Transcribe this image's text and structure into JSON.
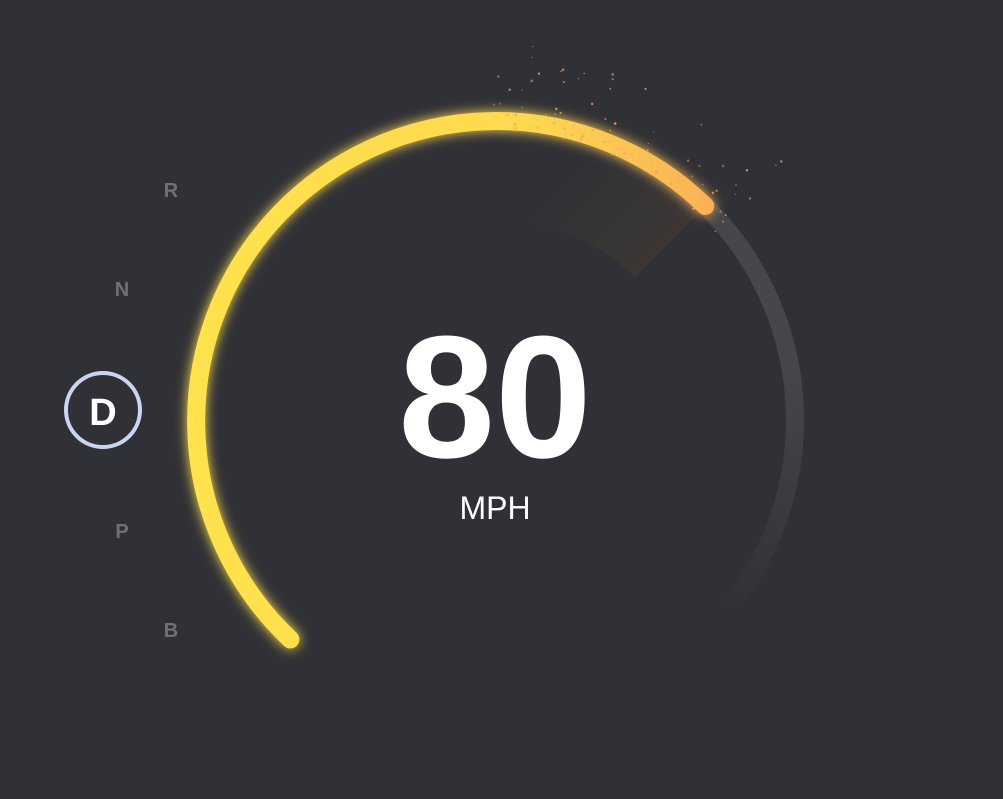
{
  "speedometer": {
    "speed": "80",
    "unit": "MPH",
    "fill_fraction": 0.66
  },
  "gear_selector": {
    "gears": [
      "R",
      "N",
      "D",
      "P",
      "B"
    ],
    "active": "D"
  },
  "colors": {
    "background": "#303136",
    "arc_start": "#ffe24d",
    "arc_end": "#f5a05a",
    "track": "#3e3f45",
    "active_ring": "#c9d5f1",
    "inactive_gear": "#707177",
    "particles": "#f5a05a"
  }
}
